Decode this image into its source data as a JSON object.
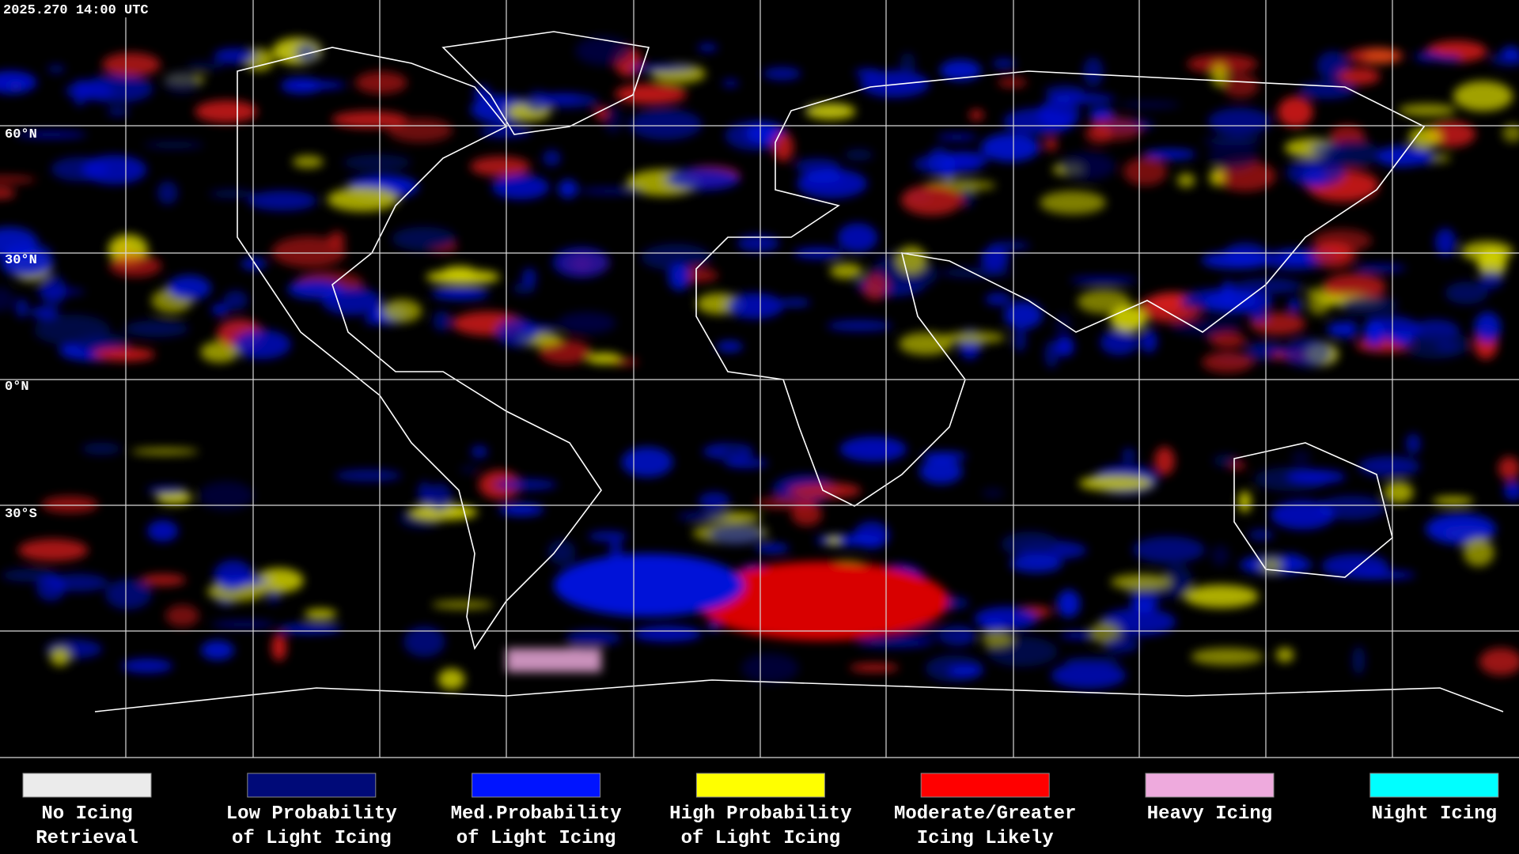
{
  "header": {
    "timestamp": "2025.270 14:00 UTC"
  },
  "map": {
    "latitude_labels": [
      "60°N",
      "30°N",
      "0°N",
      "30°S"
    ]
  },
  "legend": {
    "items": [
      {
        "lines": [
          "No Icing",
          "Retrieval"
        ],
        "color": "#ebebeb"
      },
      {
        "lines": [
          "Low Probability",
          "of Light Icing"
        ],
        "color": "#000a78"
      },
      {
        "lines": [
          "Med.Probability",
          "of Light Icing"
        ],
        "color": "#0014ff"
      },
      {
        "lines": [
          "High Probability",
          "of Light Icing"
        ],
        "color": "#ffff00"
      },
      {
        "lines": [
          "Moderate/Greater",
          "Icing Likely"
        ],
        "color": "#ff0000"
      },
      {
        "lines": [
          "Heavy Icing"
        ],
        "color": "#eeaadd"
      },
      {
        "lines": [
          "Night Icing"
        ],
        "color": "#00ffff"
      }
    ]
  }
}
